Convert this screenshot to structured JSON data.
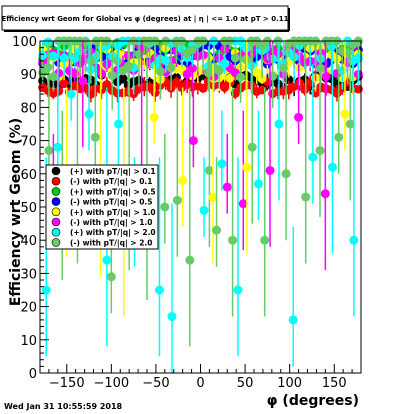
{
  "chart_data": {
    "type": "scatter",
    "title": "Efficiency wrt Geom for Global vs φ (degrees) at | η | <= 1.0 at pT > 0.11",
    "xlabel": "φ (degrees)",
    "ylabel": "Efficiency wrt Geom (%)",
    "xlim": [
      -180,
      180
    ],
    "ylim": [
      0,
      100
    ],
    "x_ticks": [
      -150,
      -100,
      -50,
      0,
      50,
      100,
      150
    ],
    "y_ticks": [
      0,
      10,
      20,
      30,
      40,
      50,
      60,
      70,
      80,
      90,
      100
    ],
    "grid": false,
    "legend_position": "left-middle",
    "timestamp": "Wed Jan 31 10:55:59 2018",
    "series": [
      {
        "name": "(+) with pT/|q| > 0.1",
        "color": "#000000",
        "marker": "circle"
      },
      {
        "name": "(-) with pT/|q| > 0.1",
        "color": "#ff0000",
        "marker": "circle"
      },
      {
        "name": "(+) with pT/|q| > 0.5",
        "color": "#00cc00",
        "marker": "circle"
      },
      {
        "name": "(-) with pT/|q| > 0.5",
        "color": "#0000ff",
        "marker": "circle"
      },
      {
        "name": "(+) with pT/|q| > 1.0",
        "color": "#ffff00",
        "marker": "circle"
      },
      {
        "name": "(-) with pT/|q| > 1.0",
        "color": "#ff00ff",
        "marker": "circle"
      },
      {
        "name": "(+) with pT/|q| > 2.0",
        "color": "#00ffff",
        "marker": "circle"
      },
      {
        "name": "(-) with pT/|q| > 2.0",
        "color": "#66cc66",
        "marker": "circle"
      }
    ],
    "series_levels": {
      "base": [
        88,
        86,
        97,
        96,
        93,
        94,
        99,
        99
      ],
      "spread": [
        2,
        2,
        3,
        3,
        5,
        5,
        8,
        10
      ]
    },
    "outliers": [
      {
        "series": 6,
        "x": -173,
        "y": 25
      },
      {
        "series": 7,
        "x": -170,
        "y": 67
      },
      {
        "series": 5,
        "x": -165,
        "y": 56
      },
      {
        "series": 6,
        "x": -160,
        "y": 68
      },
      {
        "series": 7,
        "x": -155,
        "y": 45
      },
      {
        "series": 4,
        "x": -150,
        "y": 52
      },
      {
        "series": 6,
        "x": -145,
        "y": 84
      },
      {
        "series": 7,
        "x": -138,
        "y": 53
      },
      {
        "series": 5,
        "x": -132,
        "y": 88
      },
      {
        "series": 6,
        "x": -125,
        "y": 78
      },
      {
        "series": 7,
        "x": -118,
        "y": 71
      },
      {
        "series": 4,
        "x": -112,
        "y": 55
      },
      {
        "series": 6,
        "x": -105,
        "y": 34
      },
      {
        "series": 7,
        "x": -100,
        "y": 29
      },
      {
        "series": 6,
        "x": -92,
        "y": 75
      },
      {
        "series": 4,
        "x": -86,
        "y": 40
      },
      {
        "series": 7,
        "x": -80,
        "y": 54
      },
      {
        "series": 6,
        "x": -74,
        "y": 43
      },
      {
        "series": 5,
        "x": -66,
        "y": 61
      },
      {
        "series": 7,
        "x": -60,
        "y": 48
      },
      {
        "series": 4,
        "x": -52,
        "y": 77
      },
      {
        "series": 6,
        "x": -46,
        "y": 25
      },
      {
        "series": 7,
        "x": -40,
        "y": 50
      },
      {
        "series": 6,
        "x": -32,
        "y": 17
      },
      {
        "series": 7,
        "x": -26,
        "y": 52
      },
      {
        "series": 4,
        "x": -20,
        "y": 58
      },
      {
        "series": 7,
        "x": -12,
        "y": 34
      },
      {
        "series": 5,
        "x": -8,
        "y": 70
      },
      {
        "series": 6,
        "x": 4,
        "y": 49
      },
      {
        "series": 7,
        "x": 10,
        "y": 61
      },
      {
        "series": 4,
        "x": 14,
        "y": 53
      },
      {
        "series": 7,
        "x": 18,
        "y": 43
      },
      {
        "series": 6,
        "x": 24,
        "y": 63
      },
      {
        "series": 5,
        "x": 30,
        "y": 56
      },
      {
        "series": 7,
        "x": 36,
        "y": 40
      },
      {
        "series": 6,
        "x": 42,
        "y": 25
      },
      {
        "series": 5,
        "x": 48,
        "y": 51
      },
      {
        "series": 4,
        "x": 52,
        "y": 62
      },
      {
        "series": 7,
        "x": 58,
        "y": 68
      },
      {
        "series": 6,
        "x": 65,
        "y": 57
      },
      {
        "series": 7,
        "x": 72,
        "y": 40
      },
      {
        "series": 5,
        "x": 78,
        "y": 61
      },
      {
        "series": 6,
        "x": 88,
        "y": 75
      },
      {
        "series": 7,
        "x": 96,
        "y": 60
      },
      {
        "series": 6,
        "x": 104,
        "y": 16
      },
      {
        "series": 5,
        "x": 110,
        "y": 77
      },
      {
        "series": 7,
        "x": 118,
        "y": 53
      },
      {
        "series": 6,
        "x": 126,
        "y": 65
      },
      {
        "series": 7,
        "x": 134,
        "y": 67
      },
      {
        "series": 5,
        "x": 140,
        "y": 54
      },
      {
        "series": 6,
        "x": 148,
        "y": 62
      },
      {
        "series": 7,
        "x": 155,
        "y": 71
      },
      {
        "series": 4,
        "x": 162,
        "y": 78
      },
      {
        "series": 7,
        "x": 168,
        "y": 75
      },
      {
        "series": 6,
        "x": 172,
        "y": 40
      }
    ]
  }
}
